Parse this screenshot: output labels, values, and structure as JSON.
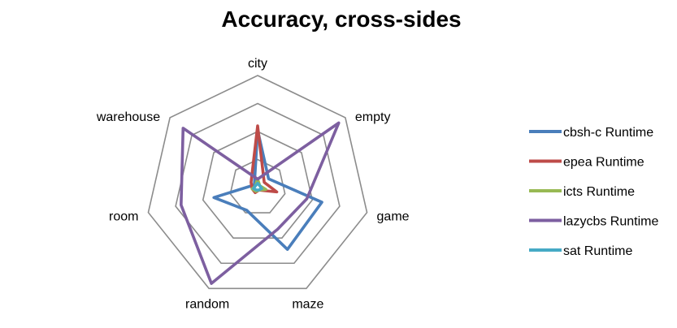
{
  "chart_data": {
    "type": "radar",
    "title": "Accuracy, cross-sides",
    "categories": [
      "city",
      "empty",
      "game",
      "maze",
      "random",
      "room",
      "warehouse"
    ],
    "rlim": [
      0,
      4
    ],
    "grid_rings": [
      1,
      2,
      3,
      4
    ],
    "grid": true,
    "legend_position": "right",
    "series": [
      {
        "name": "cbsh-c Runtime",
        "color": "#4a7ebb",
        "values": [
          2.05,
          0.5,
          2.35,
          2.45,
          0.9,
          1.6,
          0.15
        ]
      },
      {
        "name": "epea Runtime",
        "color": "#be4b48",
        "values": [
          2.2,
          0.3,
          0.7,
          0.1,
          0.2,
          0.2,
          0.3
        ]
      },
      {
        "name": "icts Runtime",
        "color": "#98b954",
        "values": [
          0.3,
          0.1,
          0.3,
          0.1,
          0.15,
          0.2,
          0.1
        ]
      },
      {
        "name": "lazycbs Runtime",
        "color": "#7d5fa0",
        "values": [
          0.3,
          3.7,
          1.8,
          1.65,
          3.8,
          2.8,
          3.4
        ]
      },
      {
        "name": "sat Runtime",
        "color": "#46aac5",
        "values": [
          0.15,
          0.1,
          0.15,
          0.1,
          0.1,
          0.15,
          0.1
        ]
      }
    ]
  }
}
